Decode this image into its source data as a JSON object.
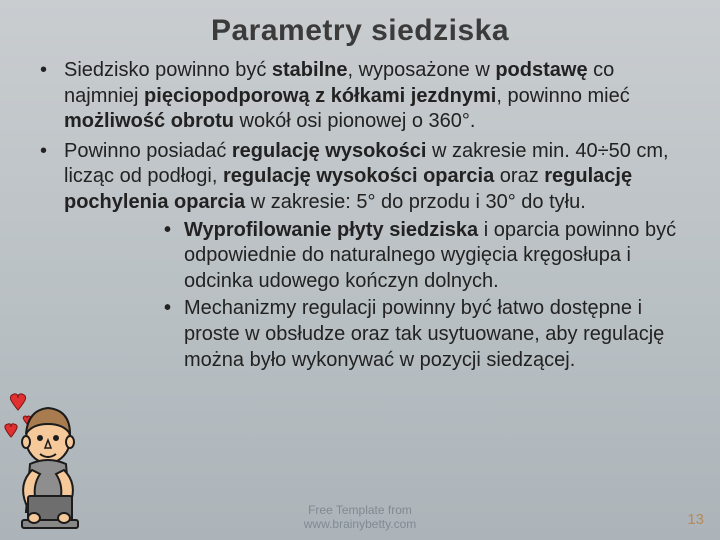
{
  "slide": {
    "title": "Parametry siedziska",
    "title_fontsize": 30,
    "body_fontsize": 20,
    "bullets_outer": [
      "Siedzisko powinno być <b>stabilne</b>, wyposażone w <b>podstawę</b> co najmniej <b>pięciopodporową z kółkami jezdnymi</b>, powinno mieć <b>możliwość obrotu</b> wokół osi pionowej o 360°.",
      "Powinno posiadać <b>regulację wysokości</b> w zakresie min. 40÷50 cm, licząc od podłogi, <b>regulację wysokości oparcia</b> oraz <b>regulację pochylenia oparcia</b> w zakresie: 5° do przodu i 30° do tyłu."
    ],
    "bullets_inner": [
      "<b>Wyprofilowanie płyty siedziska</b> i oparcia powinno być odpowiednie do naturalnego wygięcia kręgosłupa i odcinka udowego kończyn dolnych.",
      "Mechanizmy regulacji powinny być łatwo dostępne i proste w obsłudze oraz tak usytuowane, aby regulację można było wykonywać w pozycji siedzącej."
    ],
    "footer_line1": "Free Template from",
    "footer_line2": "www.brainybetty.com",
    "footer_fontsize": 12,
    "page_number": 13,
    "page_number_fontsize": 15,
    "colors": {
      "bg_top": "#c9cdd0",
      "bg_bottom": "#acb4b9",
      "title_color": "#3b3b3b",
      "text_color": "#222222",
      "footer_color": "#7f8a92",
      "pagenum_color": "#b38a5a"
    },
    "figure": {
      "skin": "#f6c99a",
      "hair": "#a97c50",
      "shirt": "#8e8e8e",
      "laptop": "#6e6e6e",
      "outline": "#1c1c1c",
      "heart": "#e03030"
    }
  }
}
